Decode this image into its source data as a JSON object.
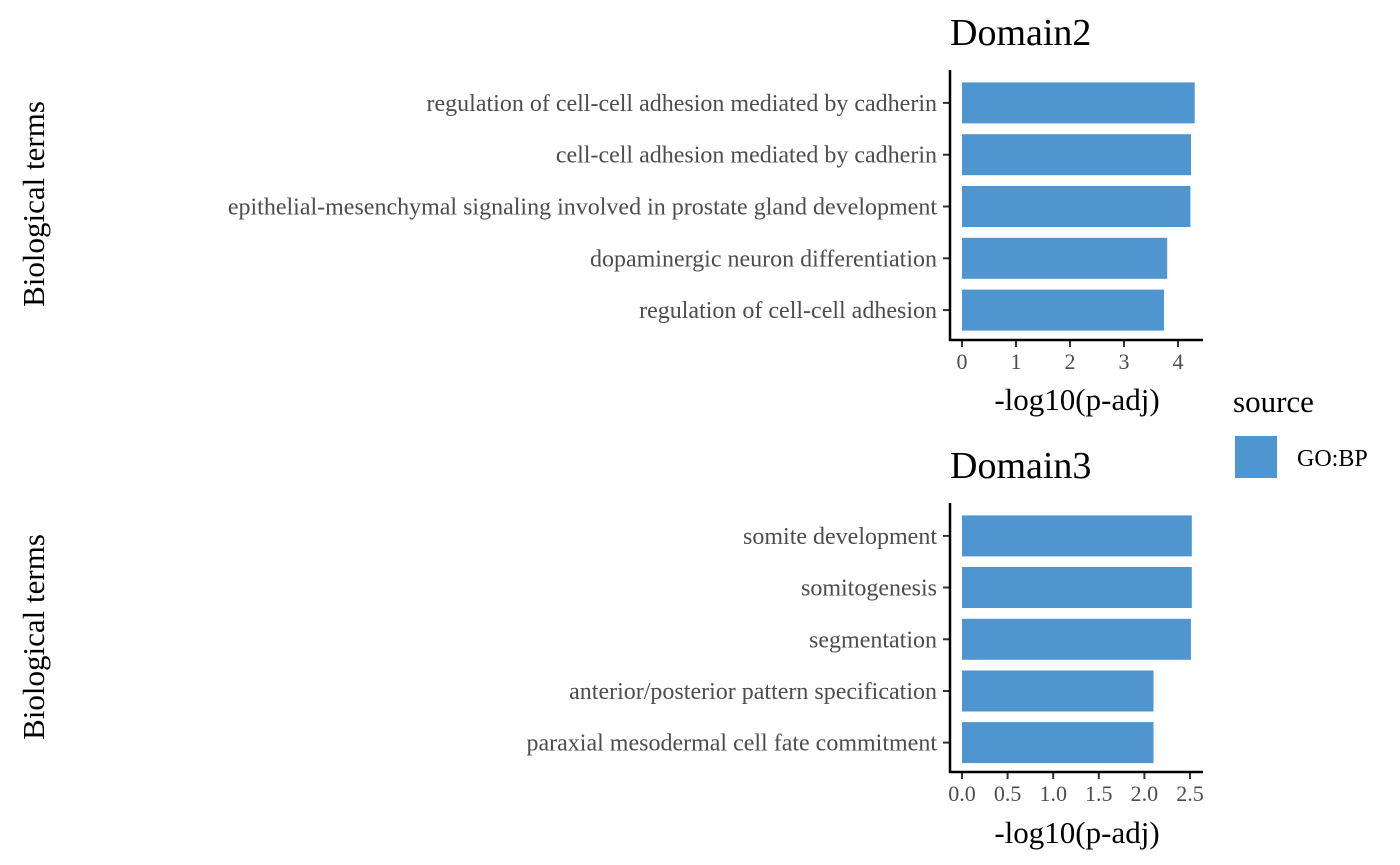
{
  "chart_data": [
    {
      "type": "bar",
      "orientation": "horizontal",
      "title": "Domain2",
      "xlabel": "-log10(p-adj)",
      "ylabel": "Biological terms",
      "categories": [
        "regulation of cell-cell adhesion mediated by cadherin",
        "cell-cell adhesion mediated by cadherin",
        "epithelial-mesenchymal signaling involved in prostate gland development",
        "dopaminergic neuron differentiation",
        "regulation of cell-cell adhesion"
      ],
      "series": [
        {
          "name": "GO:BP",
          "values": [
            4.31,
            4.24,
            4.23,
            3.8,
            3.74
          ]
        }
      ],
      "xlim": [
        0,
        4.45
      ],
      "xticks": [
        0,
        1,
        2,
        3,
        4
      ],
      "xtick_labels": [
        "0",
        "1",
        "2",
        "3",
        "4"
      ],
      "grid": false
    },
    {
      "type": "bar",
      "orientation": "horizontal",
      "title": "Domain3",
      "xlabel": "-log10(p-adj)",
      "ylabel": "Biological terms",
      "categories": [
        "somite development",
        "somitogenesis",
        "segmentation",
        "anterior/posterior pattern specification",
        "paraxial mesodermal cell fate commitment"
      ],
      "series": [
        {
          "name": "GO:BP",
          "values": [
            2.52,
            2.52,
            2.51,
            2.1,
            2.1
          ]
        }
      ],
      "xlim": [
        0,
        2.6
      ],
      "xticks": [
        0,
        0.5,
        1.0,
        1.5,
        2.0,
        2.5
      ],
      "xtick_labels": [
        "0.0",
        "0.5",
        "1.0",
        "1.5",
        "2.0",
        "2.5"
      ],
      "grid": false
    }
  ],
  "legend": {
    "title": "source",
    "items": [
      {
        "label": "GO:BP",
        "color": "#4F95CF"
      }
    ],
    "placement": "right"
  },
  "bar_color": "#4F95CF"
}
